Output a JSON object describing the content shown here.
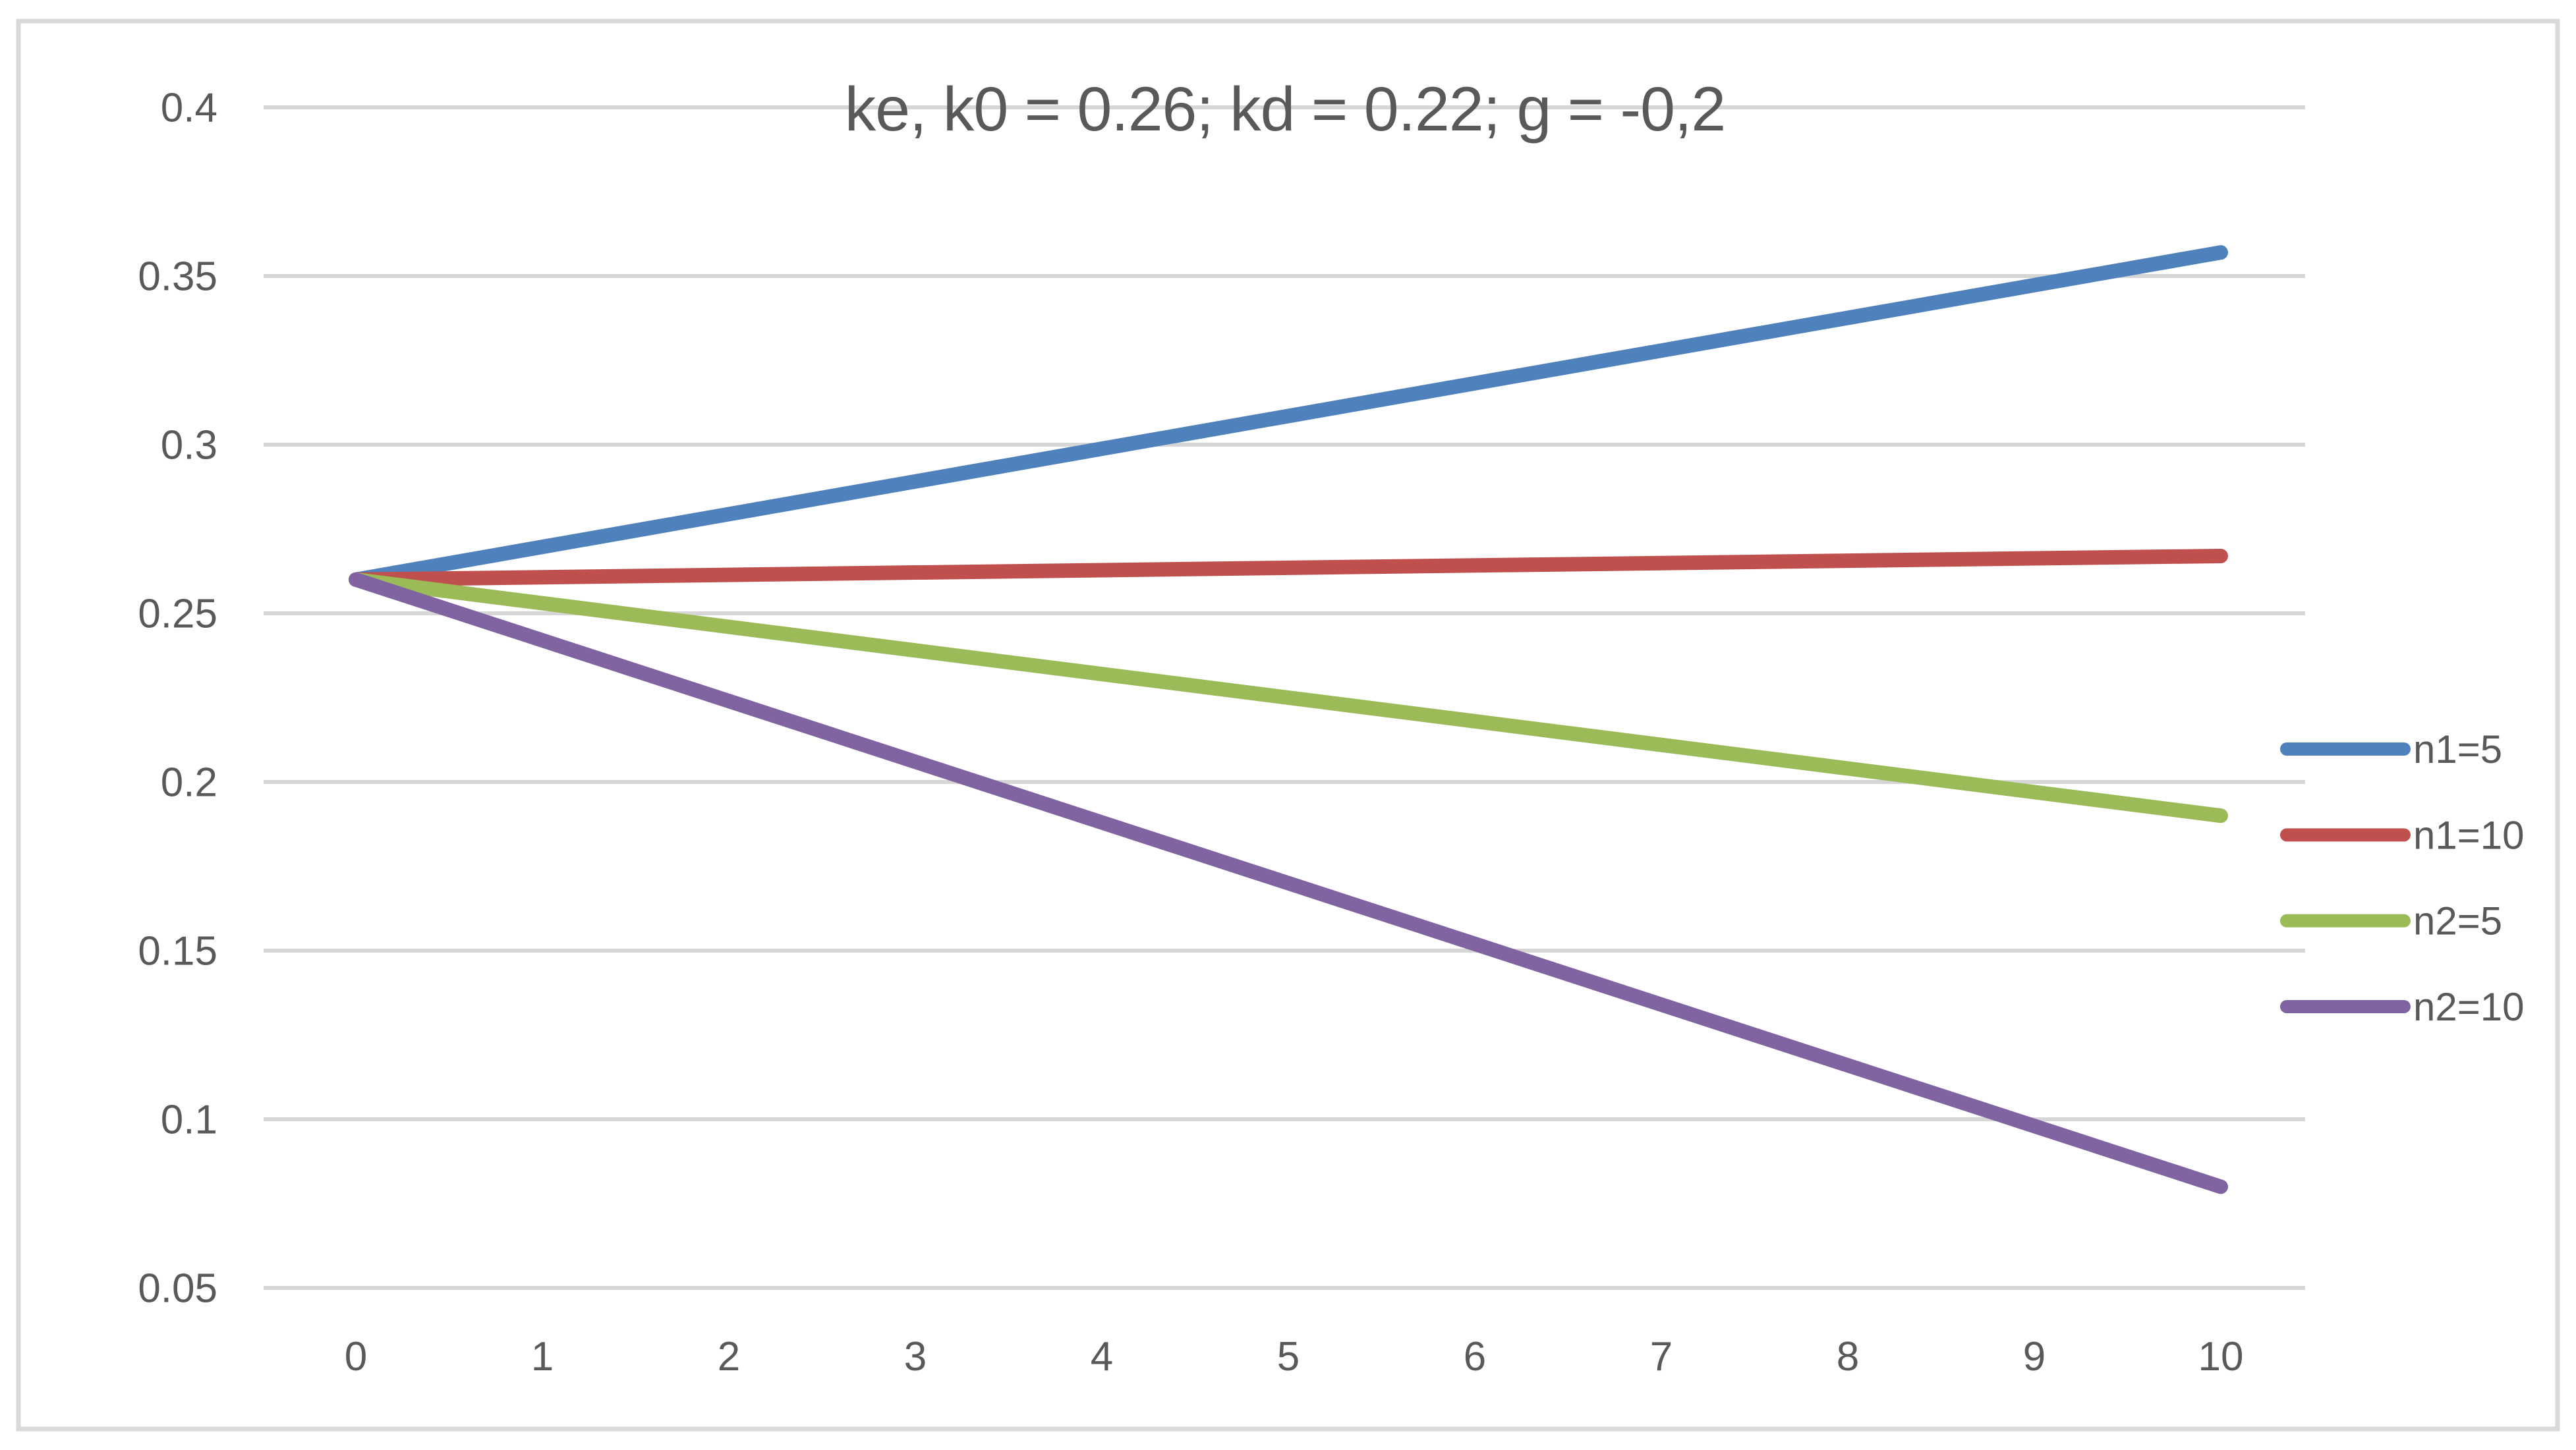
{
  "chart_data": {
    "type": "line",
    "title": "ke, k0 = 0.26; kd = 0.22; g = -0,2",
    "x": [
      0,
      1,
      2,
      3,
      4,
      5,
      6,
      7,
      8,
      9,
      10
    ],
    "x_tick_labels": [
      "0",
      "1",
      "2",
      "3",
      "4",
      "5",
      "6",
      "7",
      "8",
      "9",
      "10"
    ],
    "y_ticks": [
      0.05,
      0.1,
      0.15,
      0.2,
      0.25,
      0.3,
      0.35,
      0.4
    ],
    "y_tick_labels": [
      "0.05",
      "0.1",
      "0.15",
      "0.2",
      "0.25",
      "0.3",
      "0.35",
      "0.4"
    ],
    "xlim": [
      -0.5,
      10.45
    ],
    "ylim": [
      0.05,
      0.4
    ],
    "grid": true,
    "legend_position": "right",
    "series": [
      {
        "name": "n1=5",
        "color": "#4F81BD",
        "values": [
          0.26,
          0.2697,
          0.2794,
          0.2891,
          0.2988,
          0.3085,
          0.3182,
          0.3279,
          0.3376,
          0.3473,
          0.357
        ]
      },
      {
        "name": "n1=10",
        "color": "#C0504D",
        "values": [
          0.26,
          0.2607,
          0.2614,
          0.2621,
          0.2628,
          0.2635,
          0.2642,
          0.2649,
          0.2656,
          0.2663,
          0.267
        ]
      },
      {
        "name": "n2=5",
        "color": "#9BBB59",
        "values": [
          0.26,
          0.253,
          0.246,
          0.239,
          0.232,
          0.225,
          0.218,
          0.211,
          0.204,
          0.197,
          0.19
        ]
      },
      {
        "name": "n2=10",
        "color": "#8064A2",
        "values": [
          0.26,
          0.242,
          0.224,
          0.206,
          0.188,
          0.17,
          0.152,
          0.134,
          0.116,
          0.098,
          0.08
        ]
      }
    ],
    "colors": {
      "text": "#595959",
      "gridline": "#D6D6D6",
      "frame_border": "#D9D9D9",
      "background": "#FFFFFF"
    }
  }
}
